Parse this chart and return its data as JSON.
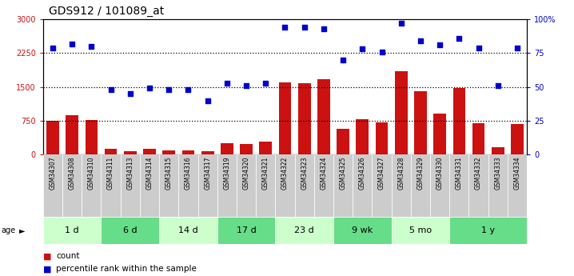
{
  "title": "GDS912 / 101089_at",
  "gsm_labels": [
    "GSM34307",
    "GSM34308",
    "GSM34310",
    "GSM34311",
    "GSM34313",
    "GSM34314",
    "GSM34315",
    "GSM34316",
    "GSM34317",
    "GSM34319",
    "GSM34320",
    "GSM34321",
    "GSM34322",
    "GSM34323",
    "GSM34324",
    "GSM34325",
    "GSM34326",
    "GSM34327",
    "GSM34328",
    "GSM34329",
    "GSM34330",
    "GSM34331",
    "GSM34332",
    "GSM34333",
    "GSM34334"
  ],
  "count_values": [
    750,
    870,
    770,
    130,
    80,
    120,
    100,
    100,
    70,
    250,
    230,
    280,
    1600,
    1590,
    1680,
    580,
    780,
    720,
    1850,
    1400,
    900,
    1480,
    700,
    170,
    680
  ],
  "percentile_values": [
    79,
    82,
    80,
    48,
    45,
    49,
    48,
    48,
    40,
    53,
    51,
    53,
    94,
    94,
    93,
    70,
    78,
    76,
    97,
    84,
    81,
    86,
    79,
    51,
    79
  ],
  "age_groups": [
    {
      "label": "1 d",
      "start": 0,
      "end": 3
    },
    {
      "label": "6 d",
      "start": 3,
      "end": 6
    },
    {
      "label": "14 d",
      "start": 6,
      "end": 9
    },
    {
      "label": "17 d",
      "start": 9,
      "end": 12
    },
    {
      "label": "23 d",
      "start": 12,
      "end": 15
    },
    {
      "label": "9 wk",
      "start": 15,
      "end": 18
    },
    {
      "label": "5 mo",
      "start": 18,
      "end": 21
    },
    {
      "label": "1 y",
      "start": 21,
      "end": 25
    }
  ],
  "bar_color": "#cc1111",
  "dot_color": "#0000cc",
  "left_ylim": [
    0,
    3000
  ],
  "right_ylim": [
    0,
    100
  ],
  "left_yticks": [
    0,
    750,
    1500,
    2250,
    3000
  ],
  "right_yticks": [
    0,
    25,
    50,
    75,
    100
  ],
  "right_yticklabels": [
    "0",
    "25",
    "50",
    "75",
    "100%"
  ],
  "age_colors_light": "#ccffcc",
  "age_colors_dark": "#66dd88",
  "gsm_bg_even": "#cccccc",
  "gsm_bg_odd": "#bbbbbb",
  "title_fontsize": 10,
  "tick_fontsize": 7,
  "label_fontsize": 5.5,
  "age_fontsize": 8
}
